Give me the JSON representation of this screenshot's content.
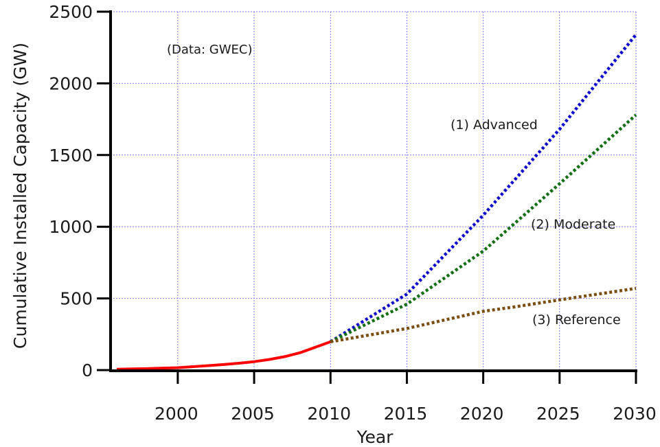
{
  "chart_data": {
    "type": "line",
    "xlabel": "Year",
    "ylabel": "Cumulative Installed Capacity (GW)",
    "xlim": [
      1995.6,
      2030
    ],
    "ylim": [
      0,
      2500
    ],
    "xticks": [
      2000,
      2005,
      2010,
      2015,
      2020,
      2025,
      2030
    ],
    "yticks": [
      0,
      500,
      1000,
      1500,
      2000,
      2500
    ],
    "grid": true,
    "annotation": "(Data: GWEC)",
    "series": [
      {
        "name": "",
        "color": "#ff0000",
        "style": "solid",
        "x": [
          1996,
          1997,
          1998,
          1999,
          2000,
          2001,
          2002,
          2003,
          2004,
          2005,
          2006,
          2007,
          2008,
          2009,
          2010
        ],
        "y": [
          6,
          8,
          10,
          14,
          17,
          24,
          31,
          39,
          48,
          59,
          74,
          94,
          121,
          159,
          198
        ]
      },
      {
        "name": "(1) Advanced",
        "color": "#1010cc",
        "style": "dotted",
        "x": [
          2010,
          2015,
          2020,
          2025,
          2030
        ],
        "y": [
          198,
          530,
          1080,
          1680,
          2340
        ]
      },
      {
        "name": "(2) Moderate",
        "color": "#147014",
        "style": "dotted",
        "x": [
          2010,
          2015,
          2020,
          2025,
          2030
        ],
        "y": [
          198,
          460,
          830,
          1300,
          1780
        ]
      },
      {
        "name": "(3) Reference",
        "color": "#7a4e10",
        "style": "dotted",
        "x": [
          2010,
          2015,
          2020,
          2022,
          2025,
          2030
        ],
        "y": [
          198,
          290,
          410,
          440,
          490,
          570
        ]
      }
    ]
  }
}
